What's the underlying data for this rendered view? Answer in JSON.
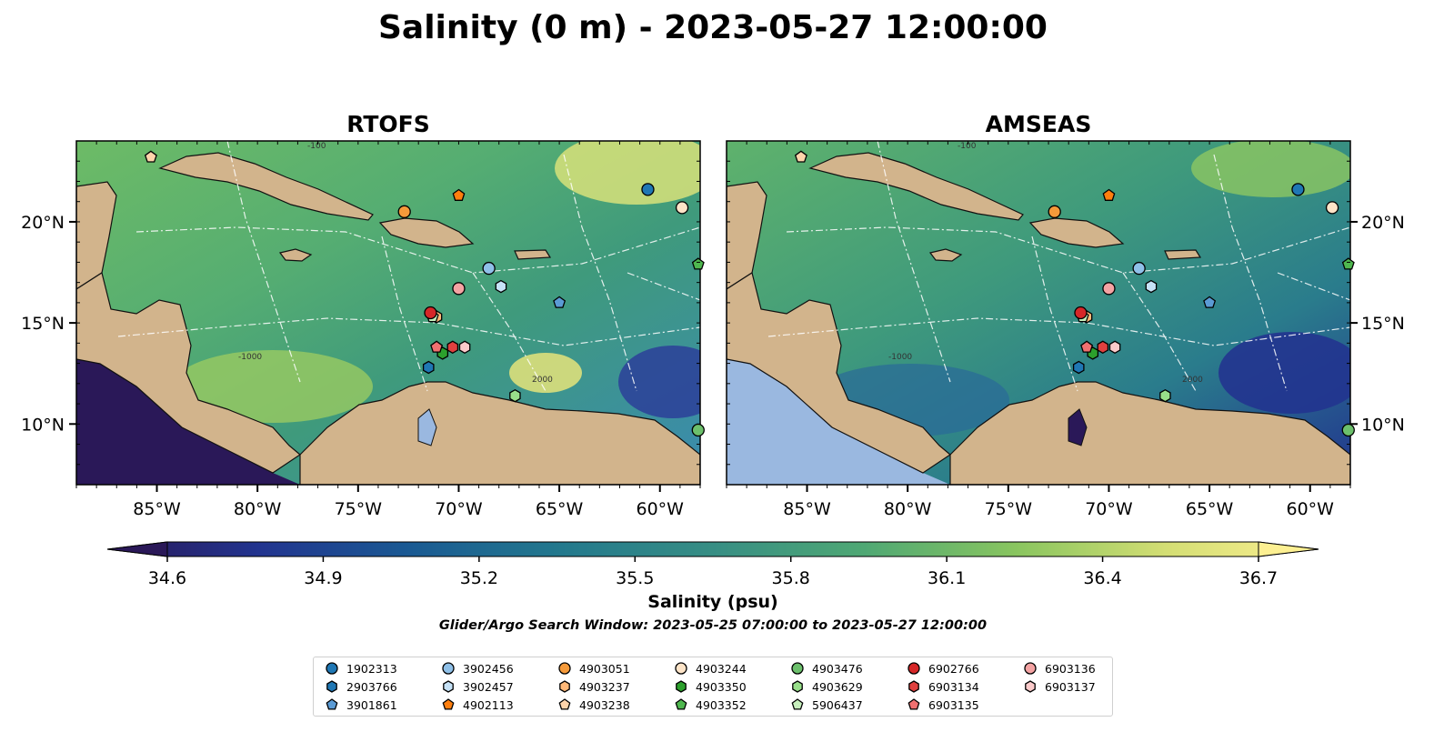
{
  "title": "Salinity (0 m) - 2023-05-27 12:00:00",
  "panels": [
    {
      "title": "RTOFS"
    },
    {
      "title": "AMSEAS"
    }
  ],
  "colorbar": {
    "label": "Salinity (psu)",
    "ticks": [
      "34.6",
      "34.9",
      "35.2",
      "35.5",
      "35.8",
      "36.1",
      "36.4",
      "36.7"
    ],
    "extend": "both",
    "colormap": [
      "#2a1858",
      "#22348f",
      "#1a5a93",
      "#23798d",
      "#378e84",
      "#4fa874",
      "#89c55f",
      "#d4de74",
      "#fdf092"
    ]
  },
  "subtitle": "Glider/Argo Search Window: 2023-05-25 07:00:00 to 2023-05-27 12:00:00",
  "axes": {
    "lon_labels": [
      "85°W",
      "80°W",
      "75°W",
      "70°W",
      "65°W",
      "60°W"
    ],
    "lat_labels": [
      "10°N",
      "15°N",
      "20°N"
    ]
  },
  "colors": {
    "land": "#d2b48c",
    "lakes": "#9ab8e0",
    "contour_label_rtofs": "-100",
    "contour_label_1000": "-1000",
    "contour_label_2000": "2000"
  },
  "chart_data": {
    "type": "map",
    "variable": "Salinity",
    "depth": "0 m",
    "time": "2023-05-27 12:00:00",
    "xlim": [
      -89,
      -58
    ],
    "ylim": [
      7,
      24
    ],
    "clim": [
      34.6,
      36.7
    ],
    "floats": [
      {
        "id": "1902313",
        "color": "#1f77b4",
        "marker": "circle",
        "lon": -60.6,
        "lat": 21.6
      },
      {
        "id": "2903766",
        "color": "#1f77b4",
        "marker": "hexagon",
        "lon": -71.5,
        "lat": 12.8
      },
      {
        "id": "3901861",
        "color": "#5b9bd5",
        "marker": "pentagon",
        "lon": -65.0,
        "lat": 16.0
      },
      {
        "id": "3902456",
        "color": "#8fc0e8",
        "marker": "circle",
        "lon": -68.5,
        "lat": 17.7
      },
      {
        "id": "3902457",
        "color": "#c6e2f7",
        "marker": "hexagon",
        "lon": -67.9,
        "lat": 16.8
      },
      {
        "id": "4902113",
        "color": "#ff7f0e",
        "marker": "pentagon",
        "lon": -70.0,
        "lat": 21.3
      },
      {
        "id": "4903051",
        "color": "#f59a3a",
        "marker": "circle",
        "lon": -72.7,
        "lat": 20.5
      },
      {
        "id": "4903237",
        "color": "#ffb878",
        "marker": "hexagon",
        "lon": -71.1,
        "lat": 15.3
      },
      {
        "id": "4903238",
        "color": "#ffd4ab",
        "marker": "pentagon",
        "lon": -85.3,
        "lat": 23.2
      },
      {
        "id": "4903244",
        "color": "#fde4c8",
        "marker": "circle",
        "lon": -58.9,
        "lat": 20.7
      },
      {
        "id": "4903350",
        "color": "#2ca02c",
        "marker": "hexagon",
        "lon": -70.8,
        "lat": 13.5
      },
      {
        "id": "4903352",
        "color": "#4fb84f",
        "marker": "pentagon",
        "lon": -58.1,
        "lat": 17.9
      },
      {
        "id": "4903476",
        "color": "#6cc06c",
        "marker": "circle",
        "lon": -58.1,
        "lat": 9.7
      },
      {
        "id": "4903629",
        "color": "#98df8a",
        "marker": "hexagon",
        "lon": -67.2,
        "lat": 11.4
      },
      {
        "id": "5906437",
        "color": "#c7f0bd",
        "marker": "pentagon",
        "lon": -71.3,
        "lat": 15.3
      },
      {
        "id": "6902766",
        "color": "#d62728",
        "marker": "circle",
        "lon": -71.4,
        "lat": 15.5
      },
      {
        "id": "6903134",
        "color": "#e0403f",
        "marker": "hexagon",
        "lon": -70.3,
        "lat": 13.8
      },
      {
        "id": "6903135",
        "color": "#f07070",
        "marker": "pentagon",
        "lon": -71.1,
        "lat": 13.8
      },
      {
        "id": "6903136",
        "color": "#f4a3a3",
        "marker": "circle",
        "lon": -70.0,
        "lat": 16.7
      },
      {
        "id": "6903137",
        "color": "#fbcaca",
        "marker": "hexagon",
        "lon": -69.7,
        "lat": 13.8
      }
    ]
  }
}
